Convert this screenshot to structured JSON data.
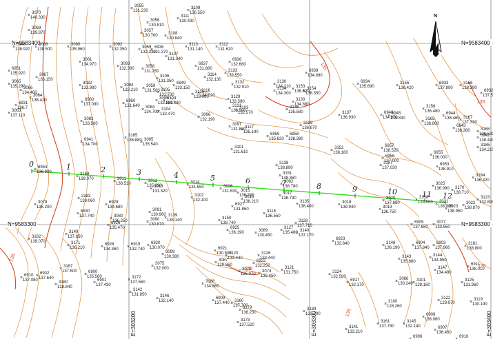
{
  "grid": {
    "northing_labels": [
      "N=9583400",
      "N=9583400",
      "N=9583300",
      "N=9583300"
    ],
    "easting_labels": [
      "E=303200",
      "E=303300",
      "E=303400"
    ]
  },
  "north_arrow": {
    "label": "N",
    "icon": "north-arrow-icon"
  },
  "contours": {
    "color": "#e39a4e",
    "index_color": "#d44a2a",
    "labels": [
      "135",
      "135",
      "135",
      "135",
      "135",
      "135"
    ]
  },
  "alignment": {
    "color": "#33e01a",
    "stations": [
      "0",
      "1",
      "2",
      "3",
      "4",
      "5",
      "6",
      "7",
      "8",
      "9",
      "10",
      "11",
      "12"
    ]
  },
  "survey_points": [
    {
      "id": "3070",
      "elev": "140.330"
    },
    {
      "id": "3069",
      "elev": "139.870"
    },
    {
      "id": "3055",
      "elev": "131.230"
    },
    {
      "id": "3109",
      "elev": "130.550"
    },
    {
      "id": "3056",
      "elev": "130.810"
    },
    {
      "id": "3111",
      "elev": "130.430"
    },
    {
      "id": "3057",
      "elev": "130.760"
    },
    {
      "id": "3108",
      "elev": "130.840"
    },
    {
      "id": "6940",
      "elev": "138.920"
    },
    {
      "id": "3068",
      "elev": "138.500"
    },
    {
      "id": "3060",
      "elev": "135.960"
    },
    {
      "id": "3092",
      "elev": "132.350"
    },
    {
      "id": "3059",
      "elev": "132.330"
    },
    {
      "id": "6938",
      "elev": "131.370"
    },
    {
      "id": "3113",
      "elev": "131.140"
    },
    {
      "id": "3112",
      "elev": "131.620"
    },
    {
      "id": "3107",
      "elev": "131.340"
    },
    {
      "id": "3081",
      "elev": "134.970"
    },
    {
      "id": "6951",
      "elev": "135.920"
    },
    {
      "id": "3067",
      "elev": "136.150"
    },
    {
      "id": "3065",
      "elev": "135.290"
    },
    {
      "id": "3066",
      "elev": "134.460"
    },
    {
      "id": "3093",
      "elev": "132.380"
    },
    {
      "id": "3082",
      "elev": "133.980"
    },
    {
      "id": "3058",
      "elev": "131.250"
    },
    {
      "id": "6937",
      "elev": "131.880"
    },
    {
      "id": "6936",
      "elev": "132.680"
    },
    {
      "id": "3133",
      "elev": "132.550"
    },
    {
      "id": "3132",
      "elev": "132.910"
    },
    {
      "id": "3114",
      "elev": "132.130"
    },
    {
      "id": "3115",
      "elev": "133.000"
    },
    {
      "id": "3094",
      "elev": "132.210"
    },
    {
      "id": "3059",
      "elev": "131.500"
    },
    {
      "id": "3106",
      "elev": "131.350"
    },
    {
      "id": "3105",
      "elev": "131.730"
    },
    {
      "id": "3104",
      "elev": "131.830"
    },
    {
      "id": "6949",
      "elev": "133.150"
    },
    {
      "id": "3116",
      "elev": "134.020"
    },
    {
      "id": "3130",
      "elev": "134.210"
    },
    {
      "id": "3129",
      "elev": "133.590"
    },
    {
      "id": "3131",
      "elev": "133.990"
    },
    {
      "id": "3134",
      "elev": "134.300"
    },
    {
      "id": "6939",
      "elev": "134.890"
    },
    {
      "id": "3154",
      "elev": "136.350"
    },
    {
      "id": "3153",
      "elev": "136.620"
    },
    {
      "id": "6934",
      "elev": "135.690"
    },
    {
      "id": "3155",
      "elev": "136.420"
    },
    {
      "id": "6933",
      "elev": "137.890"
    },
    {
      "id": "3166",
      "elev": "138.390"
    },
    {
      "id": "6932",
      "elev": "137.530"
    },
    {
      "id": "6931",
      "elev": "136.7"
    },
    {
      "id": "3064",
      "elev": "136.420"
    },
    {
      "id": "3063",
      "elev": "137.110"
    },
    {
      "id": "6960",
      "elev": "137.090"
    },
    {
      "id": "3083",
      "elev": "133.500"
    },
    {
      "id": "3084",
      "elev": "134.790"
    },
    {
      "id": "3095",
      "elev": "132.300"
    },
    {
      "id": "6950",
      "elev": "131.640"
    },
    {
      "id": "3104",
      "elev": "132.470"
    },
    {
      "id": "3096",
      "elev": "132.190"
    },
    {
      "id": "3103",
      "elev": "132.570"
    },
    {
      "id": "3117",
      "elev": "135.190"
    },
    {
      "id": "3130",
      "elev": "134.880"
    },
    {
      "id": "3136",
      "elev": "135.580"
    },
    {
      "id": "3137",
      "elev": "136.930"
    },
    {
      "id": "6946",
      "elev": "134.970"
    },
    {
      "id": "6945",
      "elev": "135.830"
    },
    {
      "id": "3156",
      "elev": "136.480"
    },
    {
      "id": "6944",
      "elev": "136.460"
    },
    {
      "id": "3165",
      "elev": "138.960"
    },
    {
      "id": "3167",
      "elev": "137.330"
    },
    {
      "id": "6943",
      "elev": "138.360"
    },
    {
      "id": "3168",
      "elev": "138.530"
    },
    {
      "id": "6942",
      "elev": "138.440"
    },
    {
      "id": "3186",
      "elev": "134.210"
    },
    {
      "id": "6941",
      "elev": "134.700"
    },
    {
      "id": "3185",
      "elev": "136.880"
    },
    {
      "id": "3085",
      "elev": "135.540"
    },
    {
      "id": "3097",
      "elev": "131.830"
    },
    {
      "id": "3101",
      "elev": "131.610"
    },
    {
      "id": "6959",
      "elev": "135.820"
    },
    {
      "id": "3129",
      "elev": "136.670"
    },
    {
      "id": "6958",
      "elev": "138.380"
    },
    {
      "id": "3152",
      "elev": "138.160"
    },
    {
      "id": "6957",
      "elev": "138.520"
    },
    {
      "id": "6956",
      "elev": "137.000"
    },
    {
      "id": "3157",
      "elev": "137.030"
    },
    {
      "id": "6955",
      "elev": "136.000"
    },
    {
      "id": "6954",
      "elev": "136.900"
    },
    {
      "id": "3169",
      "elev": "139.070"
    },
    {
      "id": "3011",
      "elev": "138.510"
    },
    {
      "id": "3012",
      "elev": "135.390"
    },
    {
      "id": "3013",
      "elev": "131.320"
    },
    {
      "id": "3014",
      "elev": "131.550"
    },
    {
      "id": "3026",
      "elev": "131.830"
    },
    {
      "id": "3015",
      "elev": "136.230"
    },
    {
      "id": "3016",
      "elev": "138.210"
    },
    {
      "id": "3017",
      "elev": "138.790"
    },
    {
      "id": "3062",
      "elev": "138.780"
    },
    {
      "id": "3151",
      "elev": "138.360"
    },
    {
      "id": "3138",
      "elev": "138.890"
    },
    {
      "id": "3135",
      "elev": "138.400"
    },
    {
      "id": "3018",
      "elev": "139.940"
    },
    {
      "id": "3019",
      "elev": "136.750"
    },
    {
      "id": "3020",
      "elev": "137.880"
    },
    {
      "id": "3158",
      "elev": "137.500"
    },
    {
      "id": "3021",
      "elev": "138.980"
    },
    {
      "id": "3022",
      "elev": "138.870"
    },
    {
      "id": "3023",
      "elev": "138.950"
    },
    {
      "id": "3025",
      "elev": "136.990"
    },
    {
      "id": "6953",
      "elev": "138.910"
    },
    {
      "id": "3170",
      "elev": "138.710"
    },
    {
      "id": "3184",
      "elev": "136.320"
    },
    {
      "id": "3183",
      "elev": "139.060"
    },
    {
      "id": "3079",
      "elev": "135.200"
    },
    {
      "id": "6930",
      "elev": "137.740"
    },
    {
      "id": "6929",
      "elev": "134.680"
    },
    {
      "id": "3080",
      "elev": "136.250"
    },
    {
      "id": "3091",
      "elev": "130.960"
    },
    {
      "id": "3090",
      "elev": "130.870"
    },
    {
      "id": "3102",
      "elev": "132.100"
    },
    {
      "id": "6927",
      "elev": "131.860"
    },
    {
      "id": "3118",
      "elev": "136.550"
    },
    {
      "id": "3128",
      "elev": "137.710"
    },
    {
      "id": "3139",
      "elev": "138.140"
    },
    {
      "id": "3150",
      "elev": "138.740"
    },
    {
      "id": "6926",
      "elev": "135.470"
    },
    {
      "id": "6925",
      "elev": "136.190"
    },
    {
      "id": "3089",
      "elev": "130.450"
    },
    {
      "id": "3127",
      "elev": "135.480"
    },
    {
      "id": "3140",
      "elev": "137.170"
    },
    {
      "id": "3149",
      "elev": "137.850"
    },
    {
      "id": "6905",
      "elev": "137.680"
    },
    {
      "id": "3077",
      "elev": "133.550"
    },
    {
      "id": "3182",
      "elev": "139.070"
    },
    {
      "id": "3171",
      "elev": "136.210"
    },
    {
      "id": "6928",
      "elev": "134.360"
    },
    {
      "id": "6919",
      "elev": "132.740"
    },
    {
      "id": "6920",
      "elev": "130.070"
    },
    {
      "id": "3099",
      "elev": "130.380"
    },
    {
      "id": "6921",
      "elev": "130.500"
    },
    {
      "id": "3120",
      "elev": "133.440"
    },
    {
      "id": "3126",
      "elev": "133.440"
    },
    {
      "id": "6923",
      "elev": "132.840"
    },
    {
      "id": "3148",
      "elev": "136.190"
    },
    {
      "id": "6904",
      "elev": "137.840"
    },
    {
      "id": "6903",
      "elev": "137.860"
    },
    {
      "id": "3181",
      "elev": "138.800"
    },
    {
      "id": "3187",
      "elev": "137.500"
    },
    {
      "id": "6900",
      "elev": "135.560"
    },
    {
      "id": "3075",
      "elev": "132.000"
    },
    {
      "id": "3087",
      "elev": "129.660"
    },
    {
      "id": "6922",
      "elev": "132.250"
    },
    {
      "id": "3121",
      "elev": "131.750"
    },
    {
      "id": "3124",
      "elev": "132.580"
    },
    {
      "id": "3143",
      "elev": "135.880"
    },
    {
      "id": "3144",
      "elev": "134.950"
    },
    {
      "id": "3147",
      "elev": "134.480"
    },
    {
      "id": "6911",
      "elev": "135.010"
    },
    {
      "id": "6910",
      "elev": "137.080"
    },
    {
      "id": "6902",
      "elev": "137.640"
    },
    {
      "id": "3180",
      "elev": "138.840"
    },
    {
      "id": "6901",
      "elev": "137.430"
    },
    {
      "id": "3172",
      "elev": "137.560"
    },
    {
      "id": "3188",
      "elev": "134.860"
    },
    {
      "id": "3071",
      "elev": "135.070"
    },
    {
      "id": "3074",
      "elev": "132.450"
    },
    {
      "id": "6917",
      "elev": "132.170"
    },
    {
      "id": "3086",
      "elev": "130.240"
    },
    {
      "id": "3101",
      "elev": "129.160"
    },
    {
      "id": "3125",
      "elev": "131.960"
    },
    {
      "id": "3142",
      "elev": "131.850"
    },
    {
      "id": "3146",
      "elev": "132.140"
    },
    {
      "id": "6909",
      "elev": "137.440"
    },
    {
      "id": "3160",
      "elev": "137.700"
    },
    {
      "id": "3179",
      "elev": "138.230"
    },
    {
      "id": "3173",
      "elev": "137.520"
    },
    {
      "id": "3189",
      "elev": "133.290"
    },
    {
      "id": "3100",
      "elev": "128.260"
    },
    {
      "id": "3122",
      "elev": "129.970"
    },
    {
      "id": "3119",
      "elev": "130.190"
    },
    {
      "id": "3141",
      "elev": "133.210"
    },
    {
      "id": "3145",
      "elev": "132.140"
    },
    {
      "id": "3161",
      "elev": "137.780"
    },
    {
      "id": "6908",
      "elev": "136.060"
    },
    {
      "id": "6907",
      "elev": "136.460"
    },
    {
      "id": "6906",
      "elev": "133.070"
    },
    {
      "id": "6916",
      "elev": "130.070"
    },
    {
      "id": "3123",
      "elev": "132.800"
    },
    {
      "id": "6913",
      "elev": "133.120"
    },
    {
      "id": "6912",
      "elev": "134.310"
    },
    {
      "id": "6899",
      "elev": "134.860"
    },
    {
      "id": "6898",
      "elev": "136.050"
    },
    {
      "id": "3178",
      "elev": "136.430"
    },
    {
      "id": "3174",
      "elev": "135.400"
    },
    {
      "id": "3190",
      "elev": "132.900"
    },
    {
      "id": "3162",
      "elev": "137.250"
    },
    {
      "id": "6914",
      "elev": "134.720"
    },
    {
      "id": "3177",
      "elev": "134.380"
    },
    {
      "id": "3175",
      "elev": "133.300"
    },
    {
      "id": "6915",
      "elev": "132.060"
    },
    {
      "id": "3176",
      "elev": "131.890"
    },
    {
      "id": "6912",
      "elev": "132.500"
    },
    {
      "id": "3184",
      "elev": "134.720"
    }
  ]
}
